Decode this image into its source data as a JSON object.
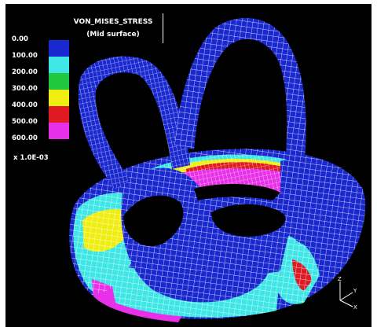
{
  "plot": {
    "title": "VON_MISES_STRESS",
    "subtitle": "(Mid surface)"
  },
  "legend": {
    "ticks": [
      "0.00",
      "100.00",
      "200.00",
      "300.00",
      "400.00",
      "500.00",
      "600.00"
    ],
    "bands": [
      {
        "from": "0.00",
        "to": "100.00",
        "color": "#1a28d0"
      },
      {
        "from": "100.00",
        "to": "200.00",
        "color": "#3fe6e6"
      },
      {
        "from": "200.00",
        "to": "300.00",
        "color": "#20c840"
      },
      {
        "from": "300.00",
        "to": "400.00",
        "color": "#f0ee10"
      },
      {
        "from": "400.00",
        "to": "500.00",
        "color": "#e01a22"
      },
      {
        "from": "500.00",
        "to": "600.00",
        "color": "#e830e8"
      }
    ],
    "multiplier": "x 1.0E-03"
  },
  "axes": {
    "labels": [
      "Z",
      "Y",
      "X"
    ]
  },
  "colors": {
    "background": "#000000",
    "mesh_line": "#ffffff",
    "low_stress": "#1a28d0",
    "cyan": "#3fe6e6",
    "green": "#20c840",
    "yellow": "#f0ee10",
    "red": "#e01a22",
    "magenta": "#e830e8"
  }
}
